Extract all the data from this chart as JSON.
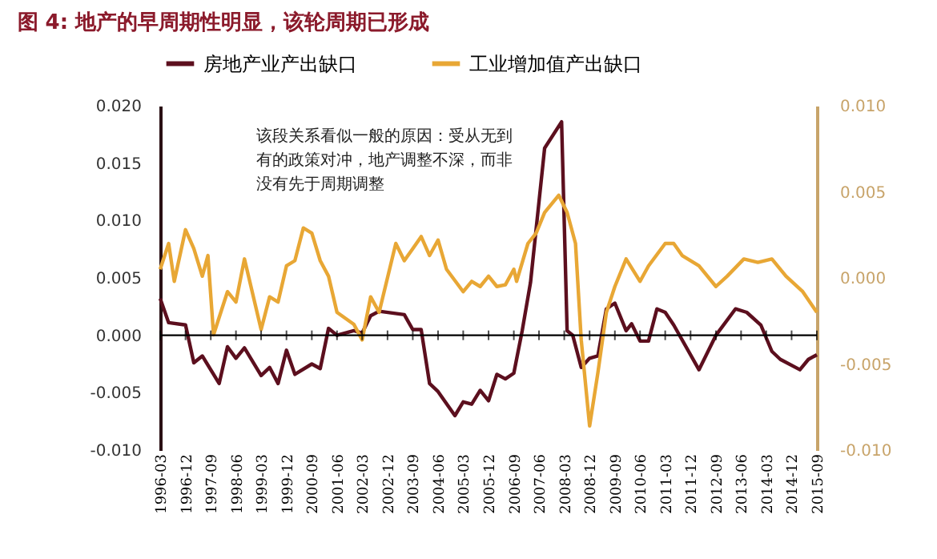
{
  "chart_data": {
    "type": "line",
    "title": "图 4: 地产的早周期性明显，该轮周期已形成",
    "annotations": [
      "该段关系看似一般的原因：受从无到有的政策对冲，地产调整不深，而非没有先于周期调整"
    ],
    "xlim": [
      "1996-03",
      "2015-09"
    ],
    "xticks": [
      "1996-03",
      "1996-12",
      "1997-09",
      "1998-06",
      "1999-03",
      "1999-12",
      "2000-09",
      "2001-06",
      "2002-03",
      "2002-12",
      "2003-09",
      "2004-06",
      "2005-03",
      "2005-12",
      "2006-09",
      "2007-06",
      "2008-03",
      "2008-12",
      "2009-09",
      "2010-06",
      "2011-03",
      "2011-12",
      "2012-09",
      "2013-06",
      "2014-03",
      "2014-12",
      "2015-09"
    ],
    "ylim": [
      -0.01,
      0.02
    ],
    "yticks": [
      {
        "value": -0.01,
        "label": "-0.010"
      },
      {
        "value": -0.005,
        "label": "-0.005"
      },
      {
        "value": 0,
        "label": "0.000"
      },
      {
        "value": 0.005,
        "label": "0.005"
      },
      {
        "value": 0.01,
        "label": "0.010"
      },
      {
        "value": 0.015,
        "label": "0.015"
      },
      {
        "value": 0.02,
        "label": "0.020"
      }
    ],
    "y2lim": [
      -0.01,
      0.01
    ],
    "y2ticks": [
      {
        "value": -0.01,
        "label": "-0.010"
      },
      {
        "value": -0.005,
        "label": "-0.005"
      },
      {
        "value": 0,
        "label": "0.000"
      },
      {
        "value": 0.005,
        "label": "0.005"
      },
      {
        "value": 0.01,
        "label": "0.010"
      }
    ],
    "ref_lines": [
      {
        "axis": "y",
        "value": 0,
        "color": "#000000"
      }
    ],
    "grid": false,
    "legend": "top",
    "marker": "none",
    "line_style": "solid",
    "series": [
      {
        "name": "房地产业产出缺口",
        "color": "#5c0f1e",
        "x": [
          "1996-03",
          "1996-06",
          "1996-12",
          "1997-03",
          "1997-06",
          "1997-12",
          "1998-03",
          "1998-06",
          "1998-09",
          "1999-03",
          "1999-06",
          "1999-09",
          "1999-12",
          "2000-03",
          "2000-09",
          "2000-12",
          "2001-03",
          "2001-06",
          "2001-12",
          "2002-03",
          "2002-06",
          "2002-09",
          "2003-06",
          "2003-09",
          "2003-12",
          "2004-03",
          "2004-06",
          "2004-12",
          "2005-03",
          "2005-06",
          "2005-09",
          "2005-12",
          "2006-03",
          "2006-06",
          "2006-09",
          "2006-12",
          "2007-03",
          "2007-08",
          "2008-02",
          "2008-04",
          "2008-06",
          "2008-09",
          "2008-12",
          "2009-03",
          "2009-06",
          "2009-09",
          "2010-01",
          "2010-03",
          "2010-06",
          "2010-09",
          "2010-12",
          "2011-03",
          "2011-06",
          "2012-03",
          "2012-09",
          "2013-04",
          "2013-08",
          "2014-01",
          "2014-05",
          "2014-08",
          "2015-03",
          "2015-06",
          "2015-09"
        ],
        "values": [
          0.0032,
          0.0011,
          0.0009,
          -0.0024,
          -0.0018,
          -0.0042,
          -0.001,
          -0.002,
          -0.0011,
          -0.0035,
          -0.0028,
          -0.0042,
          -0.0013,
          -0.0034,
          -0.0025,
          -0.0029,
          0.0006,
          0.0,
          0.0004,
          0.0002,
          0.0017,
          0.0021,
          0.0018,
          0.0005,
          0.0005,
          -0.0042,
          -0.0049,
          -0.007,
          -0.0058,
          -0.006,
          -0.0048,
          -0.0057,
          -0.0034,
          -0.0038,
          -0.0033,
          0.0004,
          0.0046,
          0.0163,
          0.0186,
          0.0004,
          0.0,
          -0.0028,
          -0.002,
          -0.0018,
          0.0023,
          0.0028,
          0.0004,
          0.001,
          -0.0005,
          -0.0005,
          0.0023,
          0.002,
          0.0009,
          -0.003,
          0.0,
          0.0023,
          0.002,
          0.0009,
          -0.0014,
          -0.0021,
          -0.003,
          -0.0021,
          -0.0017
        ]
      },
      {
        "name": "工业增加值产出缺口",
        "color": "#e8a735",
        "axis": "y2",
        "x": [
          "1996-03",
          "1996-06",
          "1996-08",
          "1996-12",
          "1997-03",
          "1997-06",
          "1997-08",
          "1997-10",
          "1998-03",
          "1998-06",
          "1998-09",
          "1999-03",
          "1999-06",
          "1999-09",
          "1999-12",
          "2000-03",
          "2000-06",
          "2000-09",
          "2000-12",
          "2001-03",
          "2001-06",
          "2001-12",
          "2002-03",
          "2002-06",
          "2002-09",
          "2003-03",
          "2003-06",
          "2003-09",
          "2003-12",
          "2004-03",
          "2004-06",
          "2004-09",
          "2005-03",
          "2005-06",
          "2005-09",
          "2005-12",
          "2006-03",
          "2006-06",
          "2006-09",
          "2006-10",
          "2007-02",
          "2007-05",
          "2007-08",
          "2008-01",
          "2008-04",
          "2008-07",
          "2008-09",
          "2008-12",
          "2009-03",
          "2009-06",
          "2009-09",
          "2010-01",
          "2010-06",
          "2010-09",
          "2011-03",
          "2011-06",
          "2011-09",
          "2012-03",
          "2012-09",
          "2013-01",
          "2013-07",
          "2013-12",
          "2014-05",
          "2014-10",
          "2015-04",
          "2015-09"
        ],
        "values": [
          0.0005,
          0.002,
          -0.0002,
          0.0028,
          0.0017,
          0.0001,
          0.0013,
          -0.0033,
          -0.0008,
          -0.0014,
          0.0011,
          -0.003,
          -0.0011,
          -0.0014,
          0.0007,
          0.001,
          0.0029,
          0.0026,
          0.001,
          0.0001,
          -0.002,
          -0.0027,
          -0.0036,
          -0.0011,
          -0.002,
          0.002,
          0.001,
          0.0017,
          0.0024,
          0.0013,
          0.0022,
          0.0005,
          -0.0008,
          -0.0002,
          -0.0005,
          0.0001,
          -0.0005,
          -0.0004,
          0.0005,
          -0.0002,
          0.002,
          0.0026,
          0.0038,
          0.0048,
          0.0038,
          0.002,
          -0.0036,
          -0.0086,
          -0.0055,
          -0.002,
          -0.0005,
          0.0011,
          -0.0002,
          0.0007,
          0.002,
          0.002,
          0.0013,
          0.0007,
          -0.0005,
          0.0001,
          0.0011,
          0.0009,
          0.0011,
          0.0001,
          -0.0008,
          -0.002
        ]
      }
    ]
  }
}
